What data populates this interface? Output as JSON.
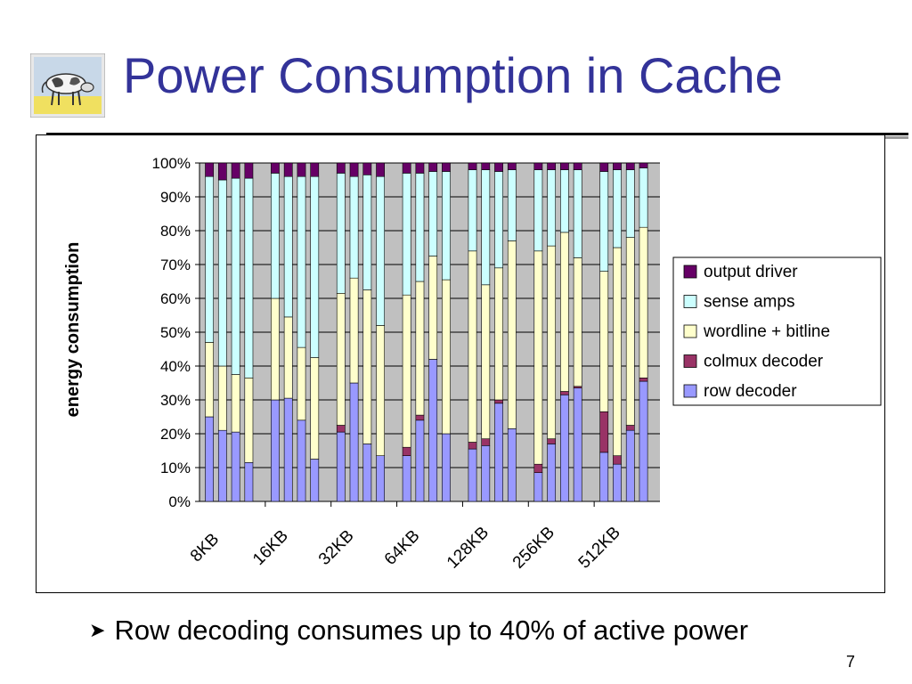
{
  "slide": {
    "title": "Power Consumption in Cache",
    "bullet": "Row decoding consumes up to 40% of active power",
    "page_number": "7"
  },
  "colors": {
    "title": "#333399",
    "plot_bg": "#c0c0c0",
    "output_driver": "#660066",
    "sense_amps": "#ccffff",
    "wordline_bitline": "#ffffcc",
    "colmux_decoder": "#993366",
    "row_decoder": "#9999ff"
  },
  "icons": {
    "logo": "cow-logo-icon",
    "bullet": "arrow-bullet-icon"
  },
  "chart_data": {
    "type": "bar",
    "stacked": true,
    "ylabel": "energy consumption",
    "xlabel": "",
    "ylim": [
      0,
      100
    ],
    "y_ticks": [
      "0%",
      "10%",
      "20%",
      "30%",
      "40%",
      "50%",
      "60%",
      "70%",
      "80%",
      "90%",
      "100%"
    ],
    "groups": [
      "8KB",
      "16KB",
      "32KB",
      "64KB",
      "128KB",
      "256KB",
      "512KB"
    ],
    "bars_per_group": 4,
    "grid": true,
    "legend_position": "right",
    "series": [
      {
        "name": "row decoder",
        "values": [
          25,
          21,
          20.5,
          11.5,
          30,
          30.5,
          24,
          12.5,
          20.5,
          35,
          17,
          13.5,
          13.5,
          24,
          42,
          20,
          15.5,
          16.5,
          29,
          21.5,
          8.5,
          17,
          31.5,
          33.5,
          14.5,
          11,
          21,
          35.5
        ]
      },
      {
        "name": "colmux decoder",
        "values": [
          0,
          0,
          0,
          0,
          0,
          0,
          0,
          0,
          2,
          0,
          0,
          0,
          2.5,
          1.5,
          0,
          0,
          2,
          2,
          1,
          0,
          2.5,
          1.5,
          1,
          0.5,
          12,
          2.5,
          1.5,
          1
        ]
      },
      {
        "name": "wordline + bitline",
        "values": [
          22,
          19,
          17,
          25,
          30,
          24,
          21.5,
          30,
          39,
          31,
          45.5,
          38.5,
          45,
          39.5,
          30.5,
          45.5,
          56.5,
          45.5,
          39,
          55.5,
          63,
          57,
          47,
          38,
          41.5,
          61.5,
          55.5,
          44.5
        ]
      },
      {
        "name": "sense amps",
        "values": [
          49,
          55,
          58,
          59,
          37,
          41.5,
          50.5,
          53.5,
          35.5,
          30,
          34,
          44,
          36,
          32,
          25,
          32,
          24,
          34,
          28.5,
          21,
          24,
          22.5,
          18.5,
          26,
          29.5,
          23,
          20,
          17.5
        ]
      },
      {
        "name": "output driver",
        "values": [
          4,
          5,
          4.5,
          4.5,
          3,
          4,
          4,
          4,
          3,
          4,
          3.5,
          4,
          3,
          3,
          2.5,
          2.5,
          2,
          2,
          2.5,
          2,
          2,
          2,
          2,
          2,
          2.5,
          2,
          2,
          1.5
        ]
      }
    ]
  }
}
